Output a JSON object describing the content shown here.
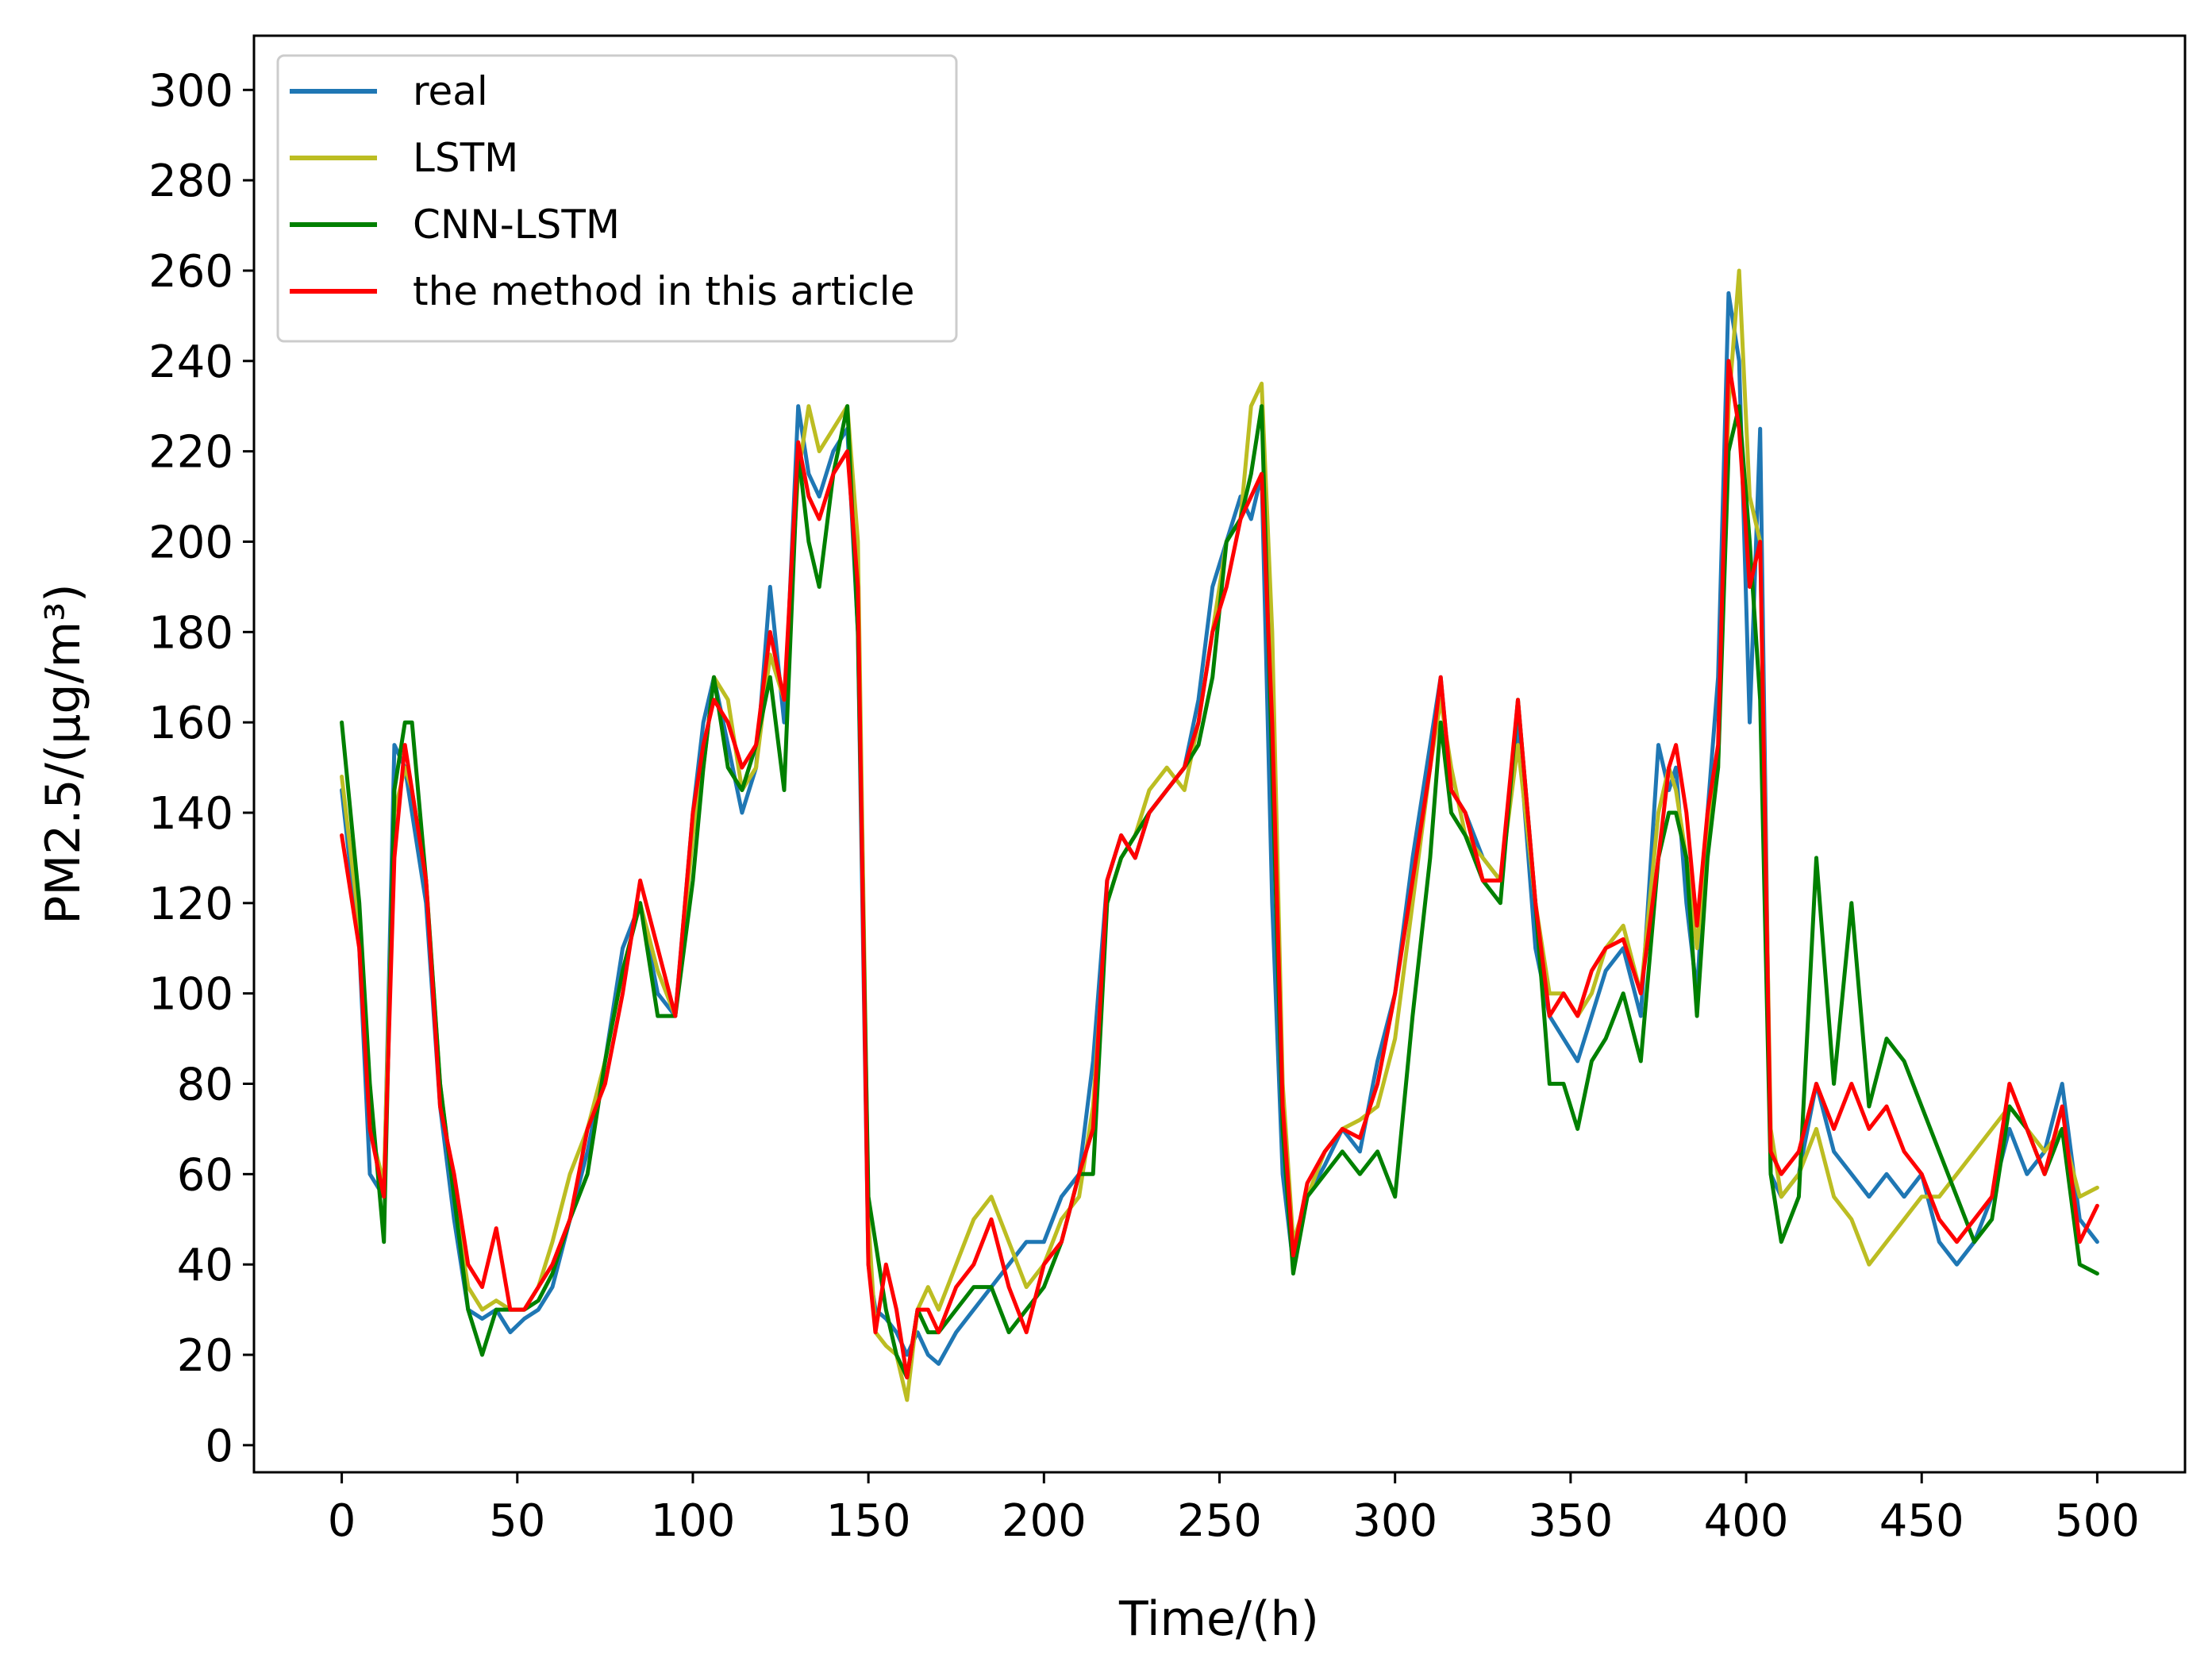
{
  "chart_data": {
    "type": "line",
    "title": "",
    "xlabel": "Time/(h)",
    "ylabel": "PM2.5/(μg/m³)",
    "xlim": [
      -25,
      525
    ],
    "ylim": [
      -6,
      312
    ],
    "xticks": [
      0,
      50,
      100,
      150,
      200,
      250,
      300,
      350,
      400,
      450,
      500
    ],
    "yticks": [
      0,
      20,
      40,
      60,
      80,
      100,
      120,
      140,
      160,
      180,
      200,
      220,
      240,
      260,
      280,
      300
    ],
    "grid": false,
    "legend_position": "top-left",
    "series": [
      {
        "name": "real",
        "color": "#1f77b4",
        "x": [
          0,
          5,
          8,
          12,
          15,
          18,
          20,
          24,
          28,
          32,
          36,
          40,
          44,
          48,
          52,
          56,
          60,
          65,
          70,
          75,
          80,
          85,
          90,
          95,
          100,
          103,
          106,
          110,
          114,
          118,
          122,
          126,
          130,
          133,
          136,
          140,
          144,
          147,
          150,
          152,
          155,
          158,
          161,
          164,
          167,
          170,
          175,
          180,
          185,
          190,
          195,
          200,
          205,
          210,
          214,
          218,
          222,
          226,
          230,
          235,
          240,
          244,
          248,
          252,
          256,
          259,
          262,
          265,
          268,
          271,
          275,
          280,
          285,
          290,
          295,
          300,
          305,
          310,
          313,
          316,
          320,
          325,
          330,
          335,
          340,
          344,
          348,
          352,
          356,
          360,
          365,
          370,
          375,
          378,
          380,
          383,
          386,
          389,
          392,
          395,
          398,
          401,
          404,
          407,
          410,
          415,
          420,
          425,
          430,
          435,
          440,
          445,
          450,
          455,
          460,
          465,
          470,
          475,
          480,
          485,
          490,
          495,
          500
        ],
        "y": [
          145,
          110,
          60,
          55,
          155,
          150,
          140,
          120,
          75,
          50,
          30,
          28,
          30,
          25,
          28,
          30,
          35,
          50,
          65,
          85,
          110,
          120,
          100,
          95,
          140,
          160,
          170,
          155,
          140,
          150,
          190,
          160,
          230,
          215,
          210,
          220,
          225,
          180,
          40,
          30,
          28,
          25,
          20,
          25,
          20,
          18,
          25,
          30,
          35,
          40,
          45,
          45,
          55,
          60,
          85,
          125,
          135,
          130,
          140,
          145,
          150,
          165,
          190,
          200,
          210,
          205,
          215,
          120,
          60,
          40,
          55,
          62,
          70,
          65,
          85,
          100,
          130,
          155,
          170,
          145,
          140,
          130,
          125,
          160,
          110,
          95,
          90,
          85,
          95,
          105,
          110,
          95,
          155,
          145,
          150,
          120,
          100,
          140,
          170,
          255,
          240,
          160,
          225,
          60,
          55,
          60,
          80,
          65,
          60,
          55,
          60,
          55,
          60,
          45,
          40,
          45,
          55,
          70,
          60,
          65,
          80,
          50,
          45
        ]
      },
      {
        "name": "LSTM",
        "color": "#bcbd22",
        "x": [
          0,
          5,
          8,
          12,
          15,
          18,
          20,
          24,
          28,
          32,
          36,
          40,
          44,
          48,
          52,
          56,
          60,
          65,
          70,
          75,
          80,
          85,
          90,
          95,
          100,
          103,
          106,
          110,
          114,
          118,
          122,
          126,
          130,
          133,
          136,
          140,
          144,
          147,
          150,
          152,
          155,
          158,
          161,
          164,
          167,
          170,
          175,
          180,
          185,
          190,
          195,
          200,
          205,
          210,
          214,
          218,
          222,
          226,
          230,
          235,
          240,
          244,
          248,
          252,
          256,
          259,
          262,
          265,
          268,
          271,
          275,
          280,
          285,
          290,
          295,
          300,
          305,
          310,
          313,
          316,
          320,
          325,
          330,
          335,
          340,
          344,
          348,
          352,
          356,
          360,
          365,
          370,
          375,
          378,
          380,
          383,
          386,
          389,
          392,
          395,
          398,
          401,
          404,
          407,
          410,
          415,
          420,
          425,
          430,
          435,
          440,
          445,
          450,
          455,
          460,
          465,
          470,
          475,
          480,
          485,
          490,
          495,
          500
        ],
        "y": [
          148,
          115,
          70,
          58,
          140,
          150,
          145,
          125,
          80,
          55,
          35,
          30,
          32,
          30,
          30,
          35,
          45,
          60,
          70,
          85,
          105,
          120,
          105,
          95,
          135,
          150,
          170,
          165,
          145,
          150,
          175,
          165,
          215,
          230,
          220,
          225,
          230,
          200,
          50,
          25,
          22,
          20,
          10,
          30,
          35,
          30,
          40,
          50,
          55,
          45,
          35,
          40,
          50,
          55,
          75,
          120,
          130,
          135,
          145,
          150,
          145,
          160,
          180,
          200,
          205,
          230,
          235,
          180,
          80,
          45,
          55,
          65,
          70,
          72,
          75,
          90,
          120,
          150,
          165,
          150,
          135,
          130,
          125,
          155,
          120,
          100,
          100,
          95,
          100,
          110,
          115,
          100,
          140,
          150,
          145,
          130,
          110,
          135,
          150,
          230,
          260,
          210,
          200,
          70,
          55,
          60,
          70,
          55,
          50,
          40,
          45,
          50,
          55,
          55,
          60,
          65,
          70,
          75,
          70,
          65,
          70,
          55,
          57
        ]
      },
      {
        "name": "CNN-LSTM",
        "color": "#008000",
        "x": [
          0,
          5,
          8,
          12,
          15,
          18,
          20,
          24,
          28,
          32,
          36,
          40,
          44,
          48,
          52,
          56,
          60,
          65,
          70,
          75,
          80,
          85,
          90,
          95,
          100,
          103,
          106,
          110,
          114,
          118,
          122,
          126,
          130,
          133,
          136,
          140,
          144,
          147,
          150,
          152,
          155,
          158,
          161,
          164,
          167,
          170,
          175,
          180,
          185,
          190,
          195,
          200,
          205,
          210,
          214,
          218,
          222,
          226,
          230,
          235,
          240,
          244,
          248,
          252,
          256,
          259,
          262,
          265,
          268,
          271,
          275,
          280,
          285,
          290,
          295,
          300,
          305,
          310,
          313,
          316,
          320,
          325,
          330,
          335,
          340,
          344,
          348,
          352,
          356,
          360,
          365,
          370,
          375,
          378,
          380,
          383,
          386,
          389,
          392,
          395,
          398,
          401,
          404,
          407,
          410,
          415,
          420,
          425,
          430,
          435,
          440,
          445,
          450,
          455,
          460,
          465,
          470,
          475,
          480,
          485,
          490,
          495,
          500
        ],
        "y": [
          160,
          120,
          80,
          45,
          145,
          160,
          160,
          125,
          80,
          55,
          30,
          20,
          30,
          30,
          30,
          32,
          38,
          50,
          60,
          85,
          105,
          120,
          95,
          95,
          125,
          150,
          170,
          150,
          145,
          155,
          170,
          145,
          220,
          200,
          190,
          215,
          230,
          180,
          55,
          45,
          30,
          20,
          15,
          30,
          25,
          25,
          30,
          35,
          35,
          25,
          30,
          35,
          45,
          60,
          60,
          120,
          130,
          135,
          140,
          145,
          150,
          155,
          170,
          200,
          205,
          215,
          230,
          150,
          70,
          38,
          55,
          60,
          65,
          60,
          65,
          55,
          95,
          130,
          160,
          140,
          135,
          125,
          120,
          165,
          120,
          80,
          80,
          70,
          85,
          90,
          100,
          85,
          130,
          140,
          140,
          130,
          95,
          130,
          150,
          220,
          230,
          200,
          165,
          60,
          45,
          55,
          130,
          80,
          120,
          75,
          90,
          85,
          75,
          65,
          55,
          45,
          50,
          75,
          70,
          60,
          70,
          40,
          38
        ]
      },
      {
        "name": "the method in this article",
        "color": "#ff0000",
        "x": [
          0,
          5,
          8,
          12,
          15,
          18,
          20,
          24,
          28,
          32,
          36,
          40,
          44,
          48,
          52,
          56,
          60,
          65,
          70,
          75,
          80,
          85,
          90,
          95,
          100,
          103,
          106,
          110,
          114,
          118,
          122,
          126,
          130,
          133,
          136,
          140,
          144,
          147,
          150,
          152,
          155,
          158,
          161,
          164,
          167,
          170,
          175,
          180,
          185,
          190,
          195,
          200,
          205,
          210,
          214,
          218,
          222,
          226,
          230,
          235,
          240,
          244,
          248,
          252,
          256,
          259,
          262,
          265,
          268,
          271,
          275,
          280,
          285,
          290,
          295,
          300,
          305,
          310,
          313,
          316,
          320,
          325,
          330,
          335,
          340,
          344,
          348,
          352,
          356,
          360,
          365,
          370,
          375,
          378,
          380,
          383,
          386,
          389,
          392,
          395,
          398,
          401,
          404,
          407,
          410,
          415,
          420,
          425,
          430,
          435,
          440,
          445,
          450,
          455,
          460,
          465,
          470,
          475,
          480,
          485,
          490,
          495,
          500
        ],
        "y": [
          135,
          110,
          70,
          55,
          130,
          155,
          145,
          125,
          75,
          60,
          40,
          35,
          48,
          30,
          30,
          35,
          40,
          50,
          70,
          80,
          100,
          125,
          110,
          95,
          140,
          155,
          165,
          160,
          150,
          155,
          180,
          165,
          222,
          210,
          205,
          215,
          220,
          190,
          40,
          25,
          40,
          30,
          15,
          30,
          30,
          25,
          35,
          40,
          50,
          35,
          25,
          40,
          45,
          60,
          70,
          125,
          135,
          130,
          140,
          145,
          150,
          160,
          180,
          190,
          205,
          210,
          215,
          160,
          75,
          42,
          58,
          65,
          70,
          68,
          80,
          100,
          125,
          150,
          170,
          145,
          140,
          125,
          125,
          165,
          120,
          95,
          100,
          95,
          105,
          110,
          112,
          100,
          130,
          150,
          155,
          140,
          115,
          140,
          155,
          240,
          225,
          190,
          200,
          65,
          60,
          65,
          80,
          70,
          80,
          70,
          75,
          65,
          60,
          50,
          45,
          50,
          55,
          80,
          70,
          60,
          75,
          45,
          53
        ]
      }
    ]
  }
}
